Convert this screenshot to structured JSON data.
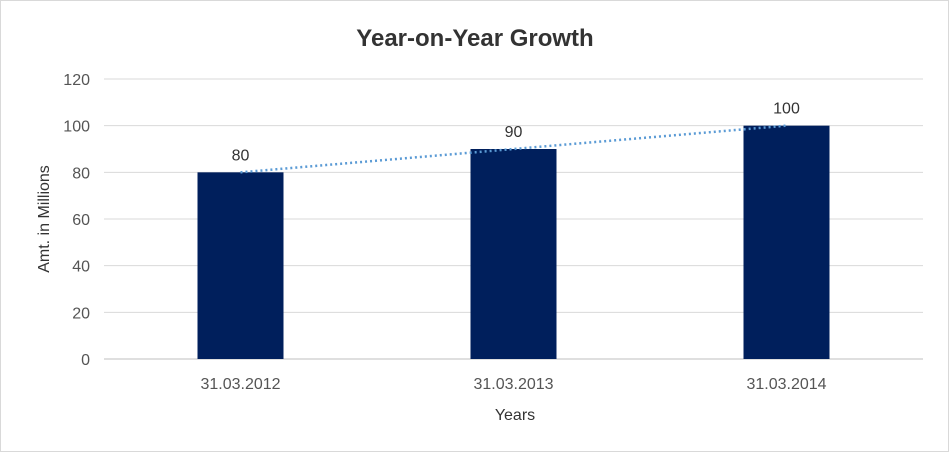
{
  "chart_data": {
    "type": "bar",
    "title": "Year-on-Year Growth",
    "xlabel": "Years",
    "ylabel": "Amt. in Millions",
    "categories": [
      "31.03.2012",
      "31.03.2013",
      "31.03.2014"
    ],
    "values": [
      80,
      90,
      100
    ],
    "data_labels": [
      "80",
      "90",
      "100"
    ],
    "ylim": [
      0,
      120
    ],
    "yticks": [
      0,
      20,
      40,
      60,
      80,
      100,
      120
    ],
    "grid": true,
    "trendline": {
      "type": "linear",
      "style": "dotted",
      "color": "#5B9BD5"
    },
    "bar_color": "#001F5C",
    "legend": "none"
  }
}
